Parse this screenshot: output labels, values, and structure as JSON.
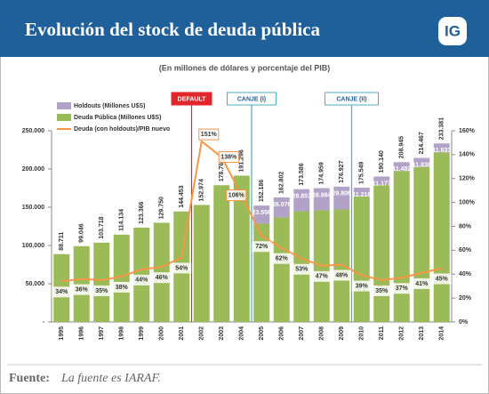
{
  "chart_data": {
    "type": "stacked-bar-line",
    "title": "Evolución del stock de deuda pública",
    "subtitle": "(En millones de dólares y porcentaje del PIB)",
    "categories": [
      "1995",
      "1996",
      "1997",
      "1998",
      "1999",
      "2000",
      "2001",
      "2002",
      "2003",
      "2004",
      "2005",
      "2006",
      "2007",
      "2008",
      "2009",
      "2010",
      "2011",
      "2012",
      "2013",
      "2014"
    ],
    "series": [
      {
        "name": "Deuda Pública (Millones U$S)",
        "color": "#9bbb59",
        "kind": "bar",
        "values": [
          88711,
          99046,
          103718,
          114134,
          123366,
          129750,
          144453,
          152974,
          178768,
          191296,
          128630,
          136726,
          144729,
          145975,
          147121,
          164331,
          178963,
          197463,
          202629,
          221748
        ]
      },
      {
        "name": "Holdouts (Millones U$S)",
        "color": "#b3a2c7",
        "kind": "bar",
        "values": [
          null,
          null,
          null,
          null,
          null,
          null,
          null,
          null,
          null,
          null,
          23556,
          26076,
          28857,
          28984,
          29806,
          11218,
          11177,
          11482,
          11838,
          11633
        ],
        "value_labels": [
          null,
          null,
          null,
          null,
          null,
          null,
          null,
          null,
          null,
          null,
          "23.556",
          "26.076",
          "28.857",
          "28.984",
          "29.806",
          "11.218",
          "11.177",
          "11.482",
          "11.838",
          "11.633"
        ]
      },
      {
        "name": "Deuda (con holdouts)/PIB nuevo",
        "color": "#f79646",
        "kind": "line",
        "axis": "y2",
        "values": [
          34,
          36,
          35,
          38,
          44,
          46,
          54,
          151,
          138,
          106,
          72,
          62,
          53,
          47,
          48,
          39,
          35,
          37,
          41,
          45
        ],
        "value_labels": [
          "34%",
          "36%",
          "35%",
          "38%",
          "44%",
          "46%",
          "54%",
          "151%",
          "138%",
          "106%",
          "72%",
          "62%",
          "53%",
          "47%",
          "48%",
          "39%",
          "35%",
          "37%",
          "41%",
          "45%"
        ]
      }
    ],
    "totals": {
      "values": [
        88711,
        99046,
        103718,
        114134,
        123366,
        129750,
        144453,
        152974,
        178768,
        191296,
        152186,
        162802,
        173586,
        174959,
        176927,
        175549,
        190140,
        208945,
        214467,
        233381
      ],
      "value_labels": [
        "88.711",
        "99.046",
        "103.718",
        "114.134",
        "123.366",
        "129.750",
        "144.453",
        "152.974",
        "178.768",
        "191.296",
        "152.186",
        "162.802",
        "173.586",
        "174.959",
        "176.927",
        "175.549",
        "190.140",
        "208.945",
        "214.467",
        "233.381"
      ]
    },
    "ylim": [
      0,
      250000
    ],
    "yticks": [
      {
        "value": 0,
        "label": "-"
      },
      {
        "value": 50000,
        "label": "50.000"
      },
      {
        "value": 100000,
        "label": "100.000"
      },
      {
        "value": 150000,
        "label": "150.000"
      },
      {
        "value": 200000,
        "label": "200.000"
      },
      {
        "value": 250000,
        "label": "250.000"
      }
    ],
    "y2lim": [
      0,
      160
    ],
    "y2ticks": [
      {
        "value": 0,
        "label": "0%"
      },
      {
        "value": 20,
        "label": "20%"
      },
      {
        "value": 40,
        "label": "40%"
      },
      {
        "value": 60,
        "label": "60%"
      },
      {
        "value": 80,
        "label": "80%"
      },
      {
        "value": 100,
        "label": "100%"
      },
      {
        "value": 120,
        "label": "120%"
      },
      {
        "value": 140,
        "label": "140%"
      },
      {
        "value": 160,
        "label": "160%"
      }
    ],
    "annotations": [
      {
        "text": "DEFAULT",
        "color": "#e2252b"
      },
      {
        "text": "CANJE (I)",
        "color": "#4bacc6"
      },
      {
        "text": "CANJE (II)",
        "color": "#4bacc6"
      }
    ]
  },
  "logo": "IG",
  "source": {
    "label": "Fuente:",
    "text": "La fuente es IARAF."
  }
}
